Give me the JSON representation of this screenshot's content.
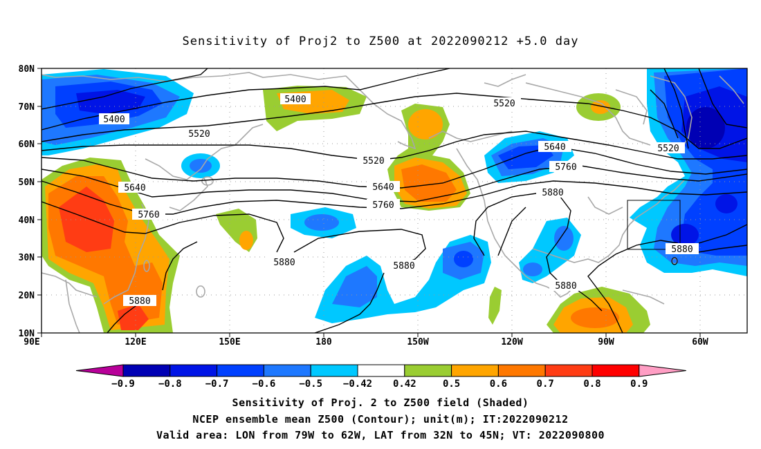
{
  "title": "Sensitivity of Proj2 to Z500 at 2022090212 +5.0 day",
  "map": {
    "lat_labels": [
      "80N",
      "70N",
      "60N",
      "50N",
      "40N",
      "30N",
      "20N",
      "10N"
    ],
    "lon_labels": [
      "90E",
      "120E",
      "150E",
      "180",
      "150W",
      "120W",
      "90W",
      "60W"
    ],
    "contour_labels": [
      "5400",
      "5400",
      "5520",
      "5520",
      "5520",
      "5520",
      "5640",
      "5640",
      "5640",
      "5760",
      "5760",
      "5760",
      "5880",
      "5880",
      "5880",
      "5880",
      "5880",
      "5880"
    ],
    "valid_area": {
      "lon": [
        "79W",
        "62W"
      ],
      "lat": [
        "32N",
        "45N"
      ]
    }
  },
  "colorbar": {
    "labels": [
      "−0.9",
      "−0.8",
      "−0.7",
      "−0.6",
      "−0.5",
      "−0.42",
      "0.42",
      "0.5",
      "0.6",
      "0.7",
      "0.8",
      "0.9"
    ],
    "colors": {
      "below": "#b80099",
      "neg": [
        "#0000b4",
        "#0014e6",
        "#0040ff",
        "#1e78ff",
        "#00c8ff"
      ],
      "neutral": "#ffffff",
      "pos": [
        "#9acd32",
        "#ffa500",
        "#ff7800",
        "#ff3c14",
        "#ff0000"
      ],
      "above": "#ff9ec4"
    }
  },
  "captions": [
    "Sensitivity of Proj. 2 to Z500 field (Shaded)",
    "NCEP ensemble mean Z500 (Contour); unit(m); IT:2022090212",
    "Valid area: LON from 79W to 62W, LAT from 32N to 45N; VT: 2022090800"
  ]
}
